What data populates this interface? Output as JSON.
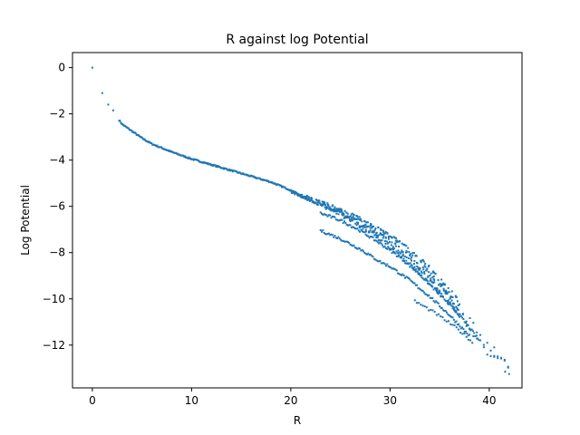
{
  "chart_data": {
    "type": "scatter",
    "title": "R against log Potential",
    "xlabel": "R",
    "ylabel": "Log Potential",
    "xlim": [
      -2,
      43.3
    ],
    "ylim": [
      -13.85,
      0.65
    ],
    "xticks": [
      0,
      10,
      20,
      30,
      40
    ],
    "yticks": [
      0,
      -2,
      -4,
      -6,
      -8,
      -10,
      -12
    ],
    "xtick_labels": [
      "0",
      "10",
      "20",
      "30",
      "40"
    ],
    "ytick_labels": [
      "0",
      "−2",
      "−4",
      "−6",
      "−8",
      "−10",
      "−12"
    ],
    "grid": false,
    "marker_color": "#1f77b4",
    "main_curve": [
      [
        0,
        0
      ],
      [
        1,
        -1.1
      ],
      [
        1.5,
        -1.6
      ],
      [
        2,
        -1.85
      ],
      [
        3,
        -2.45
      ],
      [
        4,
        -2.75
      ],
      [
        5,
        -3.05
      ],
      [
        6,
        -3.3
      ],
      [
        8,
        -3.65
      ],
      [
        10,
        -3.95
      ],
      [
        12,
        -4.2
      ],
      [
        14,
        -4.45
      ],
      [
        16,
        -4.7
      ],
      [
        18,
        -4.95
      ],
      [
        20,
        -5.3
      ],
      [
        22,
        -5.6
      ],
      [
        24,
        -5.9
      ],
      [
        26,
        -6.25
      ],
      [
        28,
        -6.7
      ],
      [
        30,
        -7.2
      ],
      [
        32,
        -7.8
      ],
      [
        34,
        -8.6
      ],
      [
        36,
        -9.5
      ],
      [
        38,
        -10.7
      ],
      [
        39.5,
        -11.7
      ],
      [
        41,
        -12.4
      ],
      [
        42,
        -13.2
      ]
    ],
    "upper_band": [
      [
        20,
        -5.4
      ],
      [
        22,
        -5.8
      ],
      [
        24,
        -6.2
      ],
      [
        26,
        -6.65
      ],
      [
        28,
        -7.2
      ],
      [
        30,
        -7.85
      ],
      [
        32,
        -8.6
      ],
      [
        34,
        -9.4
      ],
      [
        36,
        -10.3
      ],
      [
        38,
        -11.4
      ],
      [
        40,
        -12.6
      ]
    ],
    "lower_band_1": [
      [
        23,
        -6.3
      ],
      [
        25,
        -6.6
      ],
      [
        27,
        -7.05
      ],
      [
        29,
        -7.6
      ],
      [
        31,
        -8.2
      ],
      [
        33,
        -8.95
      ],
      [
        35,
        -9.8
      ],
      [
        37,
        -10.7
      ],
      [
        39,
        -11.8
      ]
    ],
    "lower_band_2": [
      [
        23,
        -7.05
      ],
      [
        25,
        -7.4
      ],
      [
        27,
        -7.85
      ],
      [
        29,
        -8.4
      ],
      [
        30,
        -8.6
      ],
      [
        32,
        -9.2
      ],
      [
        34,
        -9.9
      ],
      [
        36,
        -10.7
      ],
      [
        38,
        -11.6
      ]
    ],
    "lower_band_3": [
      [
        32.5,
        -10.1
      ],
      [
        33.5,
        -10.35
      ],
      [
        34.5,
        -10.6
      ],
      [
        35.5,
        -10.9
      ],
      [
        36.5,
        -11.2
      ],
      [
        37.5,
        -11.55
      ],
      [
        38.5,
        -11.95
      ]
    ]
  }
}
